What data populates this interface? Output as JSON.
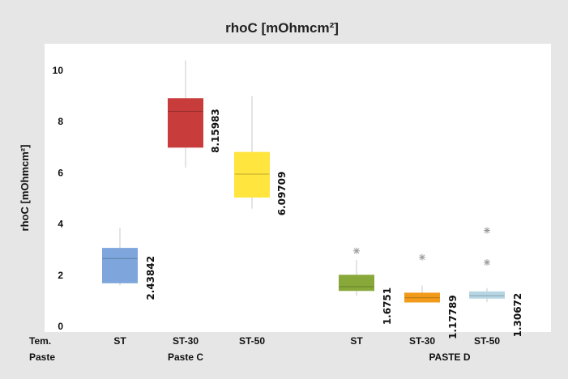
{
  "chart_data": {
    "type": "box",
    "title": "rhoC [mOhmcm²]",
    "ylabel": "rhoC [mOhmcm²]",
    "xlabel": "",
    "ylim": [
      -0.2,
      10.5
    ],
    "yticks": [
      0,
      2,
      4,
      6,
      8,
      10
    ],
    "row_labels": [
      "Tem.",
      "Paste"
    ],
    "groups": [
      {
        "name": "Paste C",
        "members": [
          "ST",
          "ST-30",
          "ST-50"
        ]
      },
      {
        "name": "PASTE D",
        "members": [
          "ST",
          "ST-30",
          "ST-50"
        ]
      }
    ],
    "boxes": [
      {
        "label": "ST",
        "group": "Paste C",
        "color": "#7ea6dc",
        "min": 1.6,
        "q1": 1.7,
        "median": 2.65,
        "q3": 3.05,
        "max": 3.85,
        "outliers": [],
        "value_label": "2.43842"
      },
      {
        "label": "ST-30",
        "group": "Paste C",
        "color": "#c83c3c",
        "min": 6.2,
        "q1": 7.0,
        "median": 8.4,
        "q3": 8.9,
        "max": 10.4,
        "outliers": [],
        "value_label": "8.15983"
      },
      {
        "label": "ST-50",
        "group": "Paste C",
        "color": "#ffe53d",
        "min": 4.6,
        "q1": 5.05,
        "median": 5.95,
        "q3": 6.8,
        "max": 9.0,
        "outliers": [],
        "value_label": "6.09709"
      },
      {
        "label": "ST",
        "group": "PASTE D",
        "color": "#88a83a",
        "min": 1.2,
        "q1": 1.4,
        "median": 1.55,
        "q3": 2.0,
        "max": 2.6,
        "outliers": [
          2.95
        ],
        "value_label": "1.6751"
      },
      {
        "label": "ST-30",
        "group": "PASTE D",
        "color": "#f29a1a",
        "min": 0.95,
        "q1": 0.95,
        "median": 1.12,
        "q3": 1.3,
        "max": 1.6,
        "outliers": [
          2.7
        ],
        "value_label": "1.17789"
      },
      {
        "label": "ST-50",
        "group": "PASTE D",
        "color": "#b7d6e4",
        "min": 0.95,
        "q1": 1.1,
        "median": 1.2,
        "q3": 1.35,
        "max": 1.5,
        "outliers": [
          2.5,
          3.75
        ],
        "value_label": "1.30672"
      }
    ]
  }
}
